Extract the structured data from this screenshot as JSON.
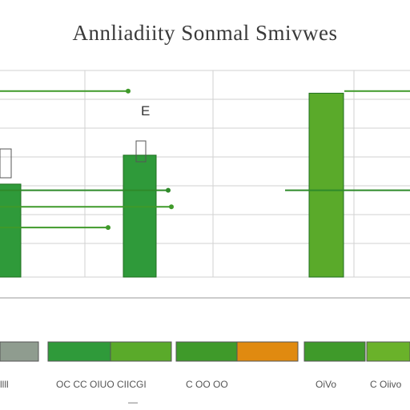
{
  "chart_data": {
    "type": "bar",
    "title": "Annliadiity Sonmal Smivwes",
    "grid": true,
    "ylim": [
      0,
      100
    ],
    "main_bars": [
      {
        "label": "",
        "value": 45
      },
      {
        "label": "E",
        "value": 59
      },
      {
        "label": "",
        "value": 89
      }
    ],
    "reference_lines": [
      {
        "value": 90,
        "color": "#3f9a2a"
      },
      {
        "value": 42,
        "color": "#2f8a2a"
      },
      {
        "value": 34,
        "color": "#3f9a2a"
      },
      {
        "value": 24,
        "color": "#3f9a2a"
      }
    ],
    "strip_labels": [
      "llll",
      "OC CC OIUO CIICGI",
      "C OO OO",
      "OiVo",
      "C  Oiivo"
    ],
    "strip_segments": [
      {
        "color": "#8f9c8f"
      },
      {
        "color": "#2f9a3a"
      },
      {
        "color": "#5aaa2a"
      },
      {
        "color": "#3f9a2a"
      },
      {
        "color": "#e08a10"
      },
      {
        "color": "#3f9a2a"
      },
      {
        "color": "#6ab22a"
      }
    ],
    "bottom_mark": "—"
  },
  "colors": {
    "bar_green": "#2f9a3a",
    "bar_green_light": "#5aaa2a",
    "grid": "#d2d2d2",
    "axis": "#9a9a9a"
  }
}
